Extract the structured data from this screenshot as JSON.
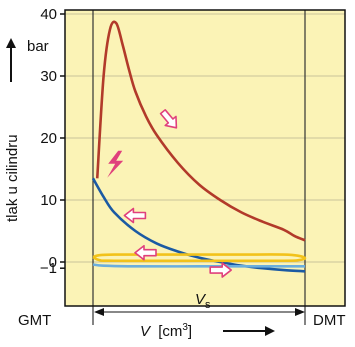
{
  "chart_data": {
    "type": "line",
    "title": "",
    "ylabel": "tlak u cilindru",
    "ylabel_unit": "bar",
    "xlabel_var": "V",
    "xlabel_unit": "[cm",
    "xlabel_unit_exp": "3",
    "xlabel_unit_close": "]",
    "ylim": [
      -1,
      40
    ],
    "yticks": [
      -1,
      0,
      10,
      20,
      30,
      40
    ],
    "xlim": [
      0,
      1
    ],
    "x_left_label": "GMT",
    "x_right_label": "DMT",
    "stroke_label_var": "V",
    "stroke_label_sub": "s",
    "grid": true,
    "background": "#fbf3b6",
    "colors": {
      "compression_combustion": "#b23a2a",
      "expansion": "#1b5aa3",
      "exhaust": "#f2c21a",
      "intake": "#6aaede",
      "arrows": "#e0407c",
      "spark": "#e0407c"
    },
    "series": [
      {
        "key": "compression_combustion",
        "x": [
          0.02,
          0.05,
          0.08,
          0.11,
          0.14,
          0.17,
          0.2,
          0.25,
          0.3,
          0.4,
          0.5,
          0.6,
          0.7,
          0.8,
          0.9,
          0.95,
          1.0
        ],
        "y": [
          13.5,
          30,
          37.5,
          38.5,
          35,
          31,
          27.5,
          23.5,
          20.5,
          16,
          12.5,
          10,
          8,
          6.5,
          5.2,
          4.2,
          3.5
        ]
      },
      {
        "key": "expansion",
        "x": [
          0.0,
          0.05,
          0.1,
          0.2,
          0.3,
          0.4,
          0.5,
          0.6,
          0.7,
          0.8,
          0.9,
          1.0
        ],
        "y": [
          13.5,
          10.5,
          8,
          5,
          3,
          1.7,
          0.7,
          0,
          -0.6,
          -1.0,
          -1.3,
          -1.5
        ]
      },
      {
        "key": "exhaust",
        "x": [
          0.0,
          0.03,
          0.1,
          0.3,
          0.5,
          0.7,
          0.9,
          0.97,
          1.0,
          0.97,
          0.9,
          0.5,
          0.1,
          0.03,
          0.0
        ],
        "y": [
          0.8,
          1.1,
          1.2,
          1.2,
          1.2,
          1.2,
          1.2,
          1.0,
          0.6,
          0.3,
          0.2,
          0.2,
          0.2,
          0.3,
          0.8
        ]
      },
      {
        "key": "intake",
        "x": [
          0.0,
          0.05,
          0.2,
          0.5,
          0.8,
          1.0
        ],
        "y": [
          -0.4,
          -0.6,
          -0.7,
          -0.7,
          -0.7,
          -0.7
        ]
      }
    ],
    "arrows": [
      {
        "x": 0.36,
        "y": 23,
        "dir": "down-right"
      },
      {
        "x": 0.2,
        "y": 7.5,
        "dir": "left"
      },
      {
        "x": 0.25,
        "y": 1.5,
        "dir": "left"
      },
      {
        "x": 0.6,
        "y": -1.3,
        "dir": "right"
      }
    ]
  }
}
